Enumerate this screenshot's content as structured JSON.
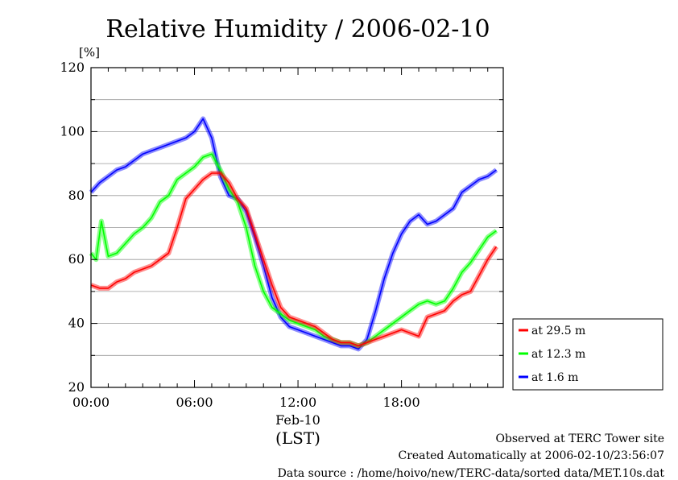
{
  "chart_data": {
    "type": "line",
    "title": "Relative Humidity / 2006-02-10",
    "ylabel": "[%]",
    "ylim": [
      20,
      120
    ],
    "yticks": [
      20,
      40,
      60,
      80,
      100,
      120
    ],
    "xlim": [
      0,
      23.9
    ],
    "xticks": [
      {
        "x": 0,
        "label": "00:00"
      },
      {
        "x": 6,
        "label": "06:00"
      },
      {
        "x": 12,
        "label": "12:00"
      },
      {
        "x": 18,
        "label": "18:00"
      }
    ],
    "x_date_label": "Feb-10",
    "x_axis_label": "(LST)",
    "grid": true,
    "legend_position": "right-bottom-outside",
    "series": [
      {
        "name": "at 29.5 m",
        "color": "#ff0000",
        "x": [
          0,
          0.5,
          1,
          1.5,
          2,
          2.5,
          3,
          3.5,
          4,
          4.5,
          5,
          5.5,
          6,
          6.5,
          7,
          7.5,
          8,
          8.5,
          9,
          9.5,
          10,
          10.5,
          11,
          11.5,
          12,
          12.5,
          13,
          13.5,
          14,
          14.5,
          15,
          15.5,
          16,
          16.5,
          17,
          17.5,
          18,
          18.5,
          19,
          19.5,
          20,
          20.5,
          21,
          21.5,
          22,
          22.5,
          23,
          23.5
        ],
        "values": [
          52,
          51,
          51,
          53,
          54,
          56,
          57,
          58,
          60,
          62,
          70,
          79,
          82,
          85,
          87,
          87,
          84,
          79,
          76,
          68,
          60,
          52,
          45,
          42,
          41,
          40,
          39,
          37,
          35,
          34,
          34,
          33,
          34,
          35,
          36,
          37,
          38,
          37,
          36,
          42,
          43,
          44,
          47,
          49,
          50,
          55,
          60,
          64
        ]
      },
      {
        "name": "at 12.3 m",
        "color": "#00ff00",
        "x": [
          0,
          0.3,
          0.6,
          1,
          1.5,
          2,
          2.5,
          3,
          3.5,
          4,
          4.5,
          5,
          5.5,
          6,
          6.5,
          7,
          7.5,
          8,
          8.5,
          9,
          9.5,
          10,
          10.5,
          11,
          11.5,
          12,
          12.5,
          13,
          13.5,
          14,
          14.5,
          15,
          15.5,
          16,
          16.5,
          17,
          17.5,
          18,
          18.5,
          19,
          19.5,
          20,
          20.5,
          21,
          21.5,
          22,
          22.5,
          23,
          23.5
        ],
        "values": [
          62,
          60,
          72,
          61,
          62,
          65,
          68,
          70,
          73,
          78,
          80,
          85,
          87,
          89,
          92,
          93,
          88,
          82,
          78,
          70,
          58,
          50,
          45,
          43,
          41,
          40,
          39,
          38,
          36,
          35,
          34,
          34,
          33,
          34,
          36,
          38,
          40,
          42,
          44,
          46,
          47,
          46,
          47,
          51,
          56,
          59,
          63,
          67,
          69
        ]
      },
      {
        "name": "at 1.6 m",
        "color": "#0000ff",
        "x": [
          0,
          0.5,
          1,
          1.5,
          2,
          2.5,
          3,
          3.5,
          4,
          4.5,
          5,
          5.5,
          6,
          6.5,
          7,
          7.5,
          8,
          8.5,
          9,
          9.5,
          10,
          10.5,
          11,
          11.5,
          12,
          12.5,
          13,
          13.5,
          14,
          14.5,
          15,
          15.5,
          16,
          16.5,
          17,
          17.5,
          18,
          18.5,
          19,
          19.5,
          20,
          20.5,
          21,
          21.5,
          22,
          22.5,
          23,
          23.5
        ],
        "values": [
          81,
          84,
          86,
          88,
          89,
          91,
          93,
          94,
          95,
          96,
          97,
          98,
          100,
          104,
          98,
          86,
          80,
          79,
          75,
          67,
          58,
          48,
          42,
          39,
          38,
          37,
          36,
          35,
          34,
          33,
          33,
          32,
          35,
          44,
          54,
          62,
          68,
          72,
          74,
          71,
          72,
          74,
          76,
          81,
          83,
          85,
          86,
          88
        ]
      }
    ]
  },
  "footer": {
    "line1": "Observed at TERC Tower site",
    "line2": "Created Automatically at 2006-02-10/23:56:07",
    "line3": "Data source : /home/hoivo/new/TERC-data/sorted  data/MET.10s.dat"
  }
}
